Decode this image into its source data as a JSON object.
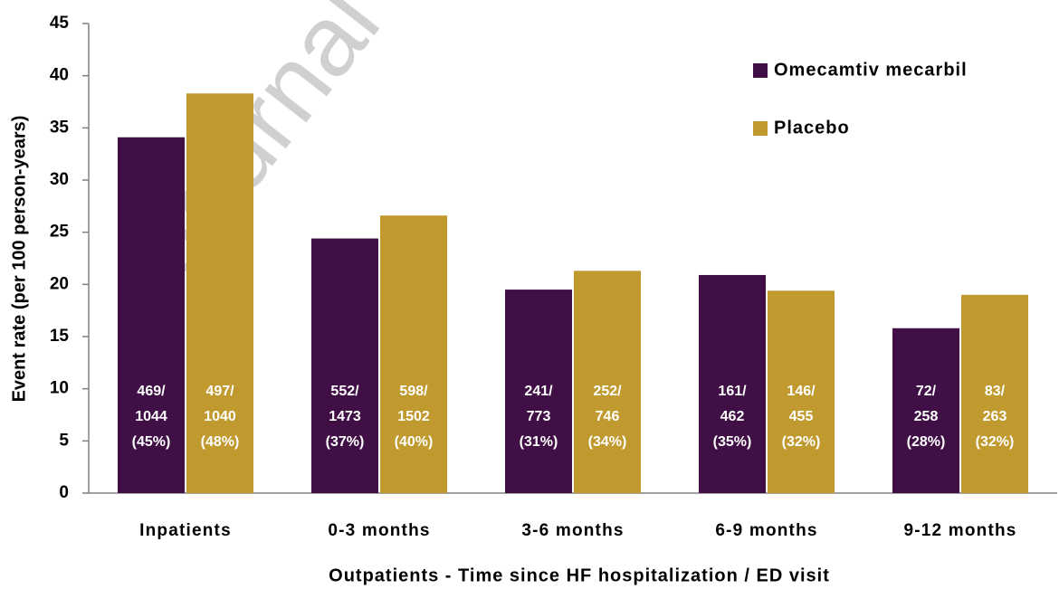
{
  "chart_data": {
    "type": "bar",
    "x_label": "Outpatients - Time since HF hospitalization / ED visit",
    "y_label": "Event rate (per 100 person-years)",
    "watermark": "Journal",
    "categories": [
      "Inpatients",
      "0-3 months",
      "3-6 months",
      "6-9 months",
      "9-12 months"
    ],
    "series": [
      {
        "name": "Omecamtiv mecarbil",
        "color": "#3f0f45",
        "values": [
          34.1,
          24.4,
          19.5,
          20.9,
          15.8
        ],
        "bar_labels": [
          [
            "469/",
            "1044",
            "(45%)"
          ],
          [
            "552/",
            "1473",
            "(37%)"
          ],
          [
            "241/",
            "773",
            "(31%)"
          ],
          [
            "161/",
            "462",
            "(35%)"
          ],
          [
            "72/",
            "258",
            "(28%)"
          ]
        ]
      },
      {
        "name": "Placebo",
        "color": "#c09a2f",
        "values": [
          38.3,
          26.6,
          21.3,
          19.4,
          19.0
        ],
        "bar_labels": [
          [
            "497/",
            "1040",
            "(48%)"
          ],
          [
            "598/",
            "1502",
            "(40%)"
          ],
          [
            "252/",
            "746",
            "(34%)"
          ],
          [
            "146/",
            "455",
            "(32%)"
          ],
          [
            "83/",
            "263",
            "(32%)"
          ]
        ]
      }
    ],
    "ylim": [
      0,
      45
    ],
    "yticks": [
      0,
      5,
      10,
      15,
      20,
      25,
      30,
      35,
      40,
      45
    ],
    "grid": false,
    "legend": "top-right"
  }
}
